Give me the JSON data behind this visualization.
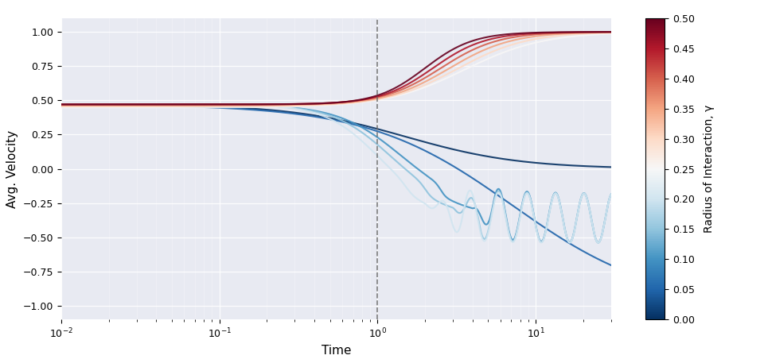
{
  "xlabel": "Time",
  "ylabel": "Avg. Velocity",
  "colorbar_label": "Radius of Interaction, γ",
  "colorbar_min": 0.0,
  "colorbar_max": 0.5,
  "colorbar_ticks": [
    0.0,
    0.05,
    0.1,
    0.15,
    0.2,
    0.25,
    0.3,
    0.35,
    0.4,
    0.45,
    0.5
  ],
  "vline_x": 1.0,
  "t_min": 0.01,
  "t_max": 30.0,
  "n_points": 3000,
  "ylim": [
    -1.1,
    1.1
  ],
  "gamma_values": [
    0.0,
    0.05,
    0.1,
    0.15,
    0.2,
    0.25,
    0.3,
    0.35,
    0.4,
    0.45,
    0.5
  ],
  "background_color": "#e8eaf2",
  "figsize": [
    9.6,
    4.57
  ],
  "dpi": 100
}
